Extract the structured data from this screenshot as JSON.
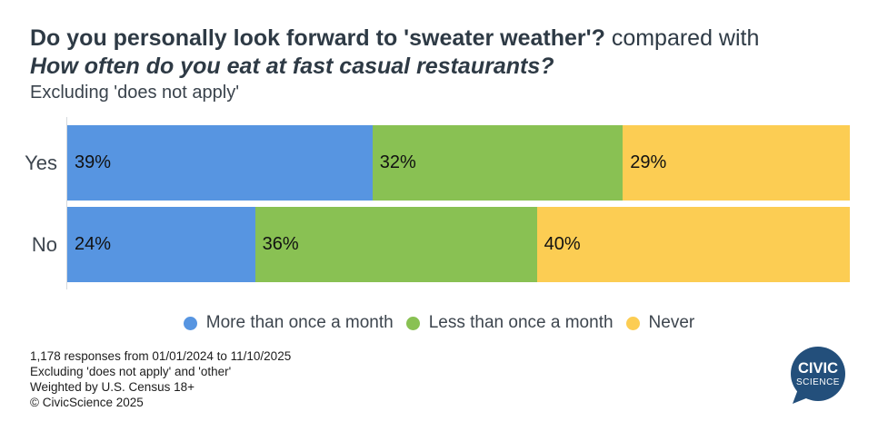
{
  "title": {
    "line1_bold": "Do you personally look forward to 'sweater weather'?",
    "line1_regular": " compared with",
    "line2": "How often do you eat at fast casual restaurants?",
    "subtitle": "Excluding 'does not apply'"
  },
  "chart_data": {
    "type": "bar",
    "orientation": "horizontal",
    "stacked": true,
    "categories": [
      "Yes",
      "No"
    ],
    "series": [
      {
        "name": "More than once a month",
        "color": "#5795e1",
        "values": [
          39,
          24
        ]
      },
      {
        "name": "Less than once a month",
        "color": "#89c153",
        "values": [
          32,
          36
        ]
      },
      {
        "name": "Never",
        "color": "#fccd53",
        "values": [
          29,
          40
        ]
      }
    ],
    "value_suffix": "%",
    "xlim": [
      0,
      100
    ],
    "grid": false,
    "legend_position": "bottom"
  },
  "footer": {
    "lines": [
      "1,178 responses from 01/01/2024 to 11/10/2025",
      "Excluding 'does not apply' and 'other'",
      "Weighted by U.S. Census 18+",
      "© CivicScience 2025"
    ]
  },
  "logo": {
    "line1": "CIVIC",
    "line2": "SCIENCE",
    "color": "#234f7b"
  },
  "colors": {
    "title_text": "#2e3a45",
    "axis_line": "#d5d9dd",
    "category_label": "#3d454e",
    "bar_value_label": "#111111"
  }
}
